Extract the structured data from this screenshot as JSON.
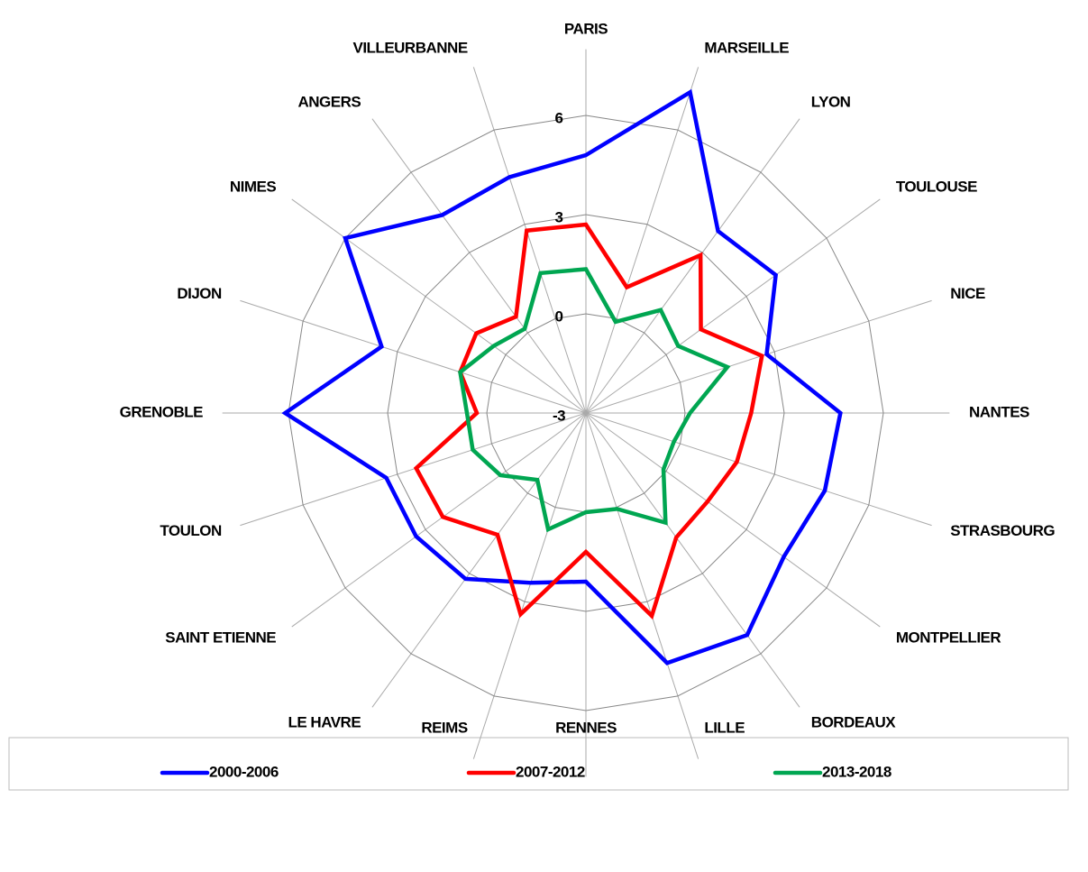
{
  "chart_data": {
    "type": "radar",
    "categories": [
      "PARIS",
      "MARSEILLE",
      "LYON",
      "TOULOUSE",
      "NICE",
      "NANTES",
      "STRASBOURG",
      "MONTPELLIER",
      "BORDEAUX",
      "LILLE",
      "RENNES",
      "REIMS",
      "LE HAVRE",
      "SAINT ETIENNE",
      "TOULON",
      "GRENOBLE",
      "DIJON",
      "NIMES",
      "ANGERS",
      "VILLEURBANNE"
    ],
    "series": [
      {
        "name": "2000-2006",
        "color": "#0000ff",
        "values": [
          4.8,
          7.2,
          3.8,
          4.1,
          2.75,
          4.7,
          4.6,
          4.4,
          5.3,
          4.95,
          2.1,
          2.4,
          3.2,
          3.35,
          3.35,
          6.1,
          3.5,
          6.0,
          4.4,
          4.5
        ]
      },
      {
        "name": "2007-2012",
        "color": "#ff0000",
        "values": [
          2.7,
          1.0,
          2.9,
          1.3,
          2.6,
          2.0,
          1.8,
          1.55,
          1.65,
          3.45,
          1.2,
          3.4,
          1.55,
          2.35,
          2.4,
          0.3,
          1.0,
          1.1,
          0.6,
          2.8
        ]
      },
      {
        "name": "2013-2018",
        "color": "#00a651",
        "values": [
          1.35,
          -0.1,
          0.85,
          0.45,
          1.5,
          0.15,
          -0.2,
          -0.1,
          1.1,
          0.05,
          0.0,
          0.7,
          -0.5,
          0.2,
          0.6,
          0.6,
          1.0,
          0.45,
          0.15,
          1.45
        ]
      }
    ],
    "ylim": [
      -3,
      8
    ],
    "yticks": [
      -3,
      0,
      3,
      6
    ],
    "grid": true,
    "legend": "bottom"
  }
}
